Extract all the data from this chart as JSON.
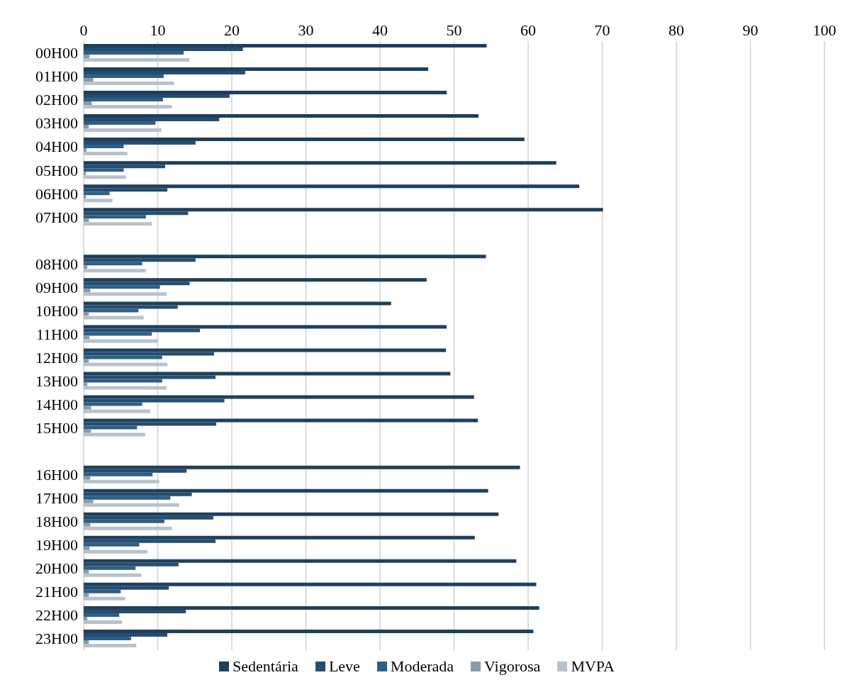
{
  "chart_data": {
    "type": "bar",
    "orientation": "horizontal",
    "categories": [
      "00H00",
      "01H00",
      "02H00",
      "03H00",
      "04H00",
      "05H00",
      "06H00",
      "07H00",
      null,
      "08H00",
      "09H00",
      "10H00",
      "11H00",
      "12H00",
      "13H00",
      "14H00",
      "15H00",
      null,
      "16H00",
      "17H00",
      "18H00",
      "19H00",
      "20H00",
      "21H00",
      "22H00",
      "23H00"
    ],
    "series": [
      {
        "name": "Sedentária",
        "color": "#1f3f5c",
        "values": [
          54.4,
          46.5,
          49.0,
          53.3,
          59.5,
          63.8,
          66.9,
          70.1,
          null,
          54.3,
          46.3,
          41.5,
          49.0,
          48.9,
          49.5,
          52.7,
          53.2,
          null,
          58.9,
          54.6,
          56.0,
          52.8,
          58.4,
          61.1,
          61.5,
          60.7
        ]
      },
      {
        "name": "Leve",
        "color": "#264d6e",
        "values": [
          21.5,
          21.8,
          19.7,
          18.3,
          15.1,
          11.0,
          11.3,
          14.1,
          null,
          15.1,
          14.3,
          12.7,
          15.7,
          17.6,
          17.8,
          19.0,
          17.9,
          null,
          13.9,
          14.6,
          17.5,
          17.8,
          12.8,
          11.5,
          13.8,
          11.3
        ]
      },
      {
        "name": "Moderada",
        "color": "#2e5f85",
        "values": [
          13.5,
          10.8,
          10.7,
          9.7,
          5.4,
          5.4,
          3.5,
          8.4,
          null,
          7.9,
          10.3,
          7.4,
          9.2,
          10.6,
          10.6,
          7.9,
          7.2,
          null,
          9.3,
          11.7,
          10.9,
          7.5,
          7.0,
          5.0,
          4.8,
          6.4
        ]
      },
      {
        "name": "Vigorosa",
        "color": "#8a9aab",
        "values": [
          0.8,
          1.3,
          1.1,
          0.7,
          0.4,
          0.3,
          0.3,
          0.7,
          null,
          0.5,
          0.9,
          0.7,
          0.8,
          0.7,
          0.5,
          1.0,
          1.0,
          null,
          0.9,
          1.3,
          0.9,
          0.8,
          0.7,
          0.7,
          0.5,
          0.7
        ]
      },
      {
        "name": "MVPA",
        "color": "#b8c2cc",
        "values": [
          14.3,
          12.2,
          11.9,
          10.5,
          5.9,
          5.7,
          3.9,
          9.2,
          null,
          8.4,
          11.2,
          8.1,
          10.0,
          11.3,
          11.2,
          9.0,
          8.3,
          null,
          10.2,
          12.9,
          11.9,
          8.6,
          7.8,
          5.6,
          5.2,
          7.1
        ]
      }
    ],
    "xlim": [
      0,
      100
    ],
    "xticks": [
      0,
      10,
      20,
      30,
      40,
      50,
      60,
      70,
      80,
      90,
      100
    ],
    "grid": "x",
    "legend": "bottom"
  }
}
